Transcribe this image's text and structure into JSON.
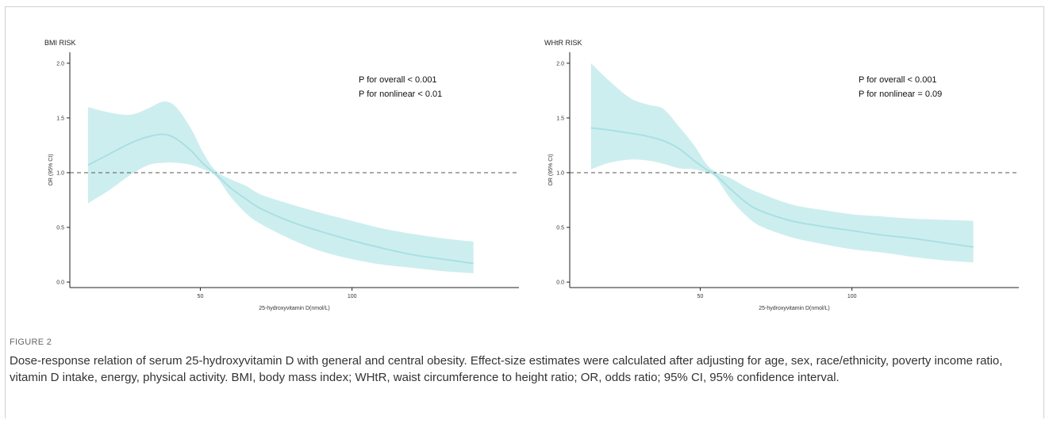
{
  "figure": {
    "label": "FIGURE 2",
    "caption": "Dose-response relation of serum 25-hydroxyvitamin D with general and central obesity. Effect-size estimates were calculated after adjusting for age, sex, race/ethnicity, poverty income ratio, vitamin D intake, energy, physical activity. BMI, body mass index; WHtR, waist circumference to height ratio; OR, odds ratio; 95% CI, 95% confidence interval."
  },
  "colors": {
    "ribbon": "#cdeeef",
    "curve": "#a9e0e3",
    "reference": "#555555",
    "axis": "#222222"
  },
  "chart_data": [
    {
      "type": "line",
      "title": "BMI RISK",
      "xlabel": "25-hydroxyvitamin D(nmol/L)",
      "ylabel": "OR (95% CI)",
      "xlim": [
        7,
        155
      ],
      "ylim": [
        -0.05,
        2.1
      ],
      "xticks": [
        50,
        100
      ],
      "yticks": [
        0.0,
        0.5,
        1.0,
        1.5,
        2.0
      ],
      "ytick_labels": [
        "0.0",
        "0.5",
        "1.0",
        "1.5",
        "2.0"
      ],
      "reference_line": 1.0,
      "annotations": [
        "P for overall < 0.001",
        "P for nonlinear < 0.01"
      ],
      "x": [
        13,
        20,
        27,
        33,
        38,
        42,
        47,
        51,
        55,
        60,
        65,
        70,
        80,
        90,
        100,
        110,
        120,
        130,
        140
      ],
      "y": [
        1.07,
        1.17,
        1.27,
        1.33,
        1.35,
        1.31,
        1.2,
        1.08,
        0.99,
        0.86,
        0.76,
        0.67,
        0.55,
        0.46,
        0.38,
        0.31,
        0.25,
        0.21,
        0.17
      ],
      "lower": [
        0.72,
        0.84,
        0.98,
        1.07,
        1.09,
        1.09,
        1.07,
        1.03,
        0.97,
        0.78,
        0.63,
        0.53,
        0.39,
        0.28,
        0.21,
        0.16,
        0.13,
        0.1,
        0.08
      ],
      "upper": [
        1.6,
        1.55,
        1.53,
        1.59,
        1.65,
        1.6,
        1.4,
        1.18,
        1.02,
        0.94,
        0.88,
        0.8,
        0.71,
        0.63,
        0.56,
        0.49,
        0.44,
        0.4,
        0.37
      ]
    },
    {
      "type": "line",
      "title": "WHtR RISK",
      "xlabel": "25-hydroxyvitamin D(nmol/L)",
      "ylabel": "OR (95% CI)",
      "xlim": [
        7,
        155
      ],
      "ylim": [
        -0.05,
        2.1
      ],
      "xticks": [
        50,
        100
      ],
      "yticks": [
        0.0,
        0.5,
        1.0,
        1.5,
        2.0
      ],
      "ytick_labels": [
        "0.0",
        "0.5",
        "1.0",
        "1.5",
        "2.0"
      ],
      "reference_line": 1.0,
      "annotations": [
        "P for overall < 0.001",
        "P for nonlinear = 0.09"
      ],
      "x": [
        14,
        20,
        27,
        33,
        38,
        43,
        48,
        52,
        55,
        60,
        65,
        70,
        80,
        90,
        100,
        110,
        120,
        130,
        140
      ],
      "y": [
        1.41,
        1.39,
        1.36,
        1.33,
        1.29,
        1.22,
        1.11,
        1.03,
        0.98,
        0.85,
        0.73,
        0.65,
        0.56,
        0.51,
        0.47,
        0.43,
        0.4,
        0.36,
        0.32
      ],
      "lower": [
        1.03,
        1.09,
        1.12,
        1.11,
        1.08,
        1.04,
        1.03,
        1.0,
        0.96,
        0.76,
        0.61,
        0.51,
        0.41,
        0.35,
        0.3,
        0.27,
        0.23,
        0.2,
        0.18
      ],
      "upper": [
        2.0,
        1.84,
        1.68,
        1.62,
        1.58,
        1.42,
        1.25,
        1.08,
        1.01,
        0.95,
        0.87,
        0.81,
        0.71,
        0.66,
        0.62,
        0.6,
        0.58,
        0.57,
        0.56
      ]
    }
  ]
}
